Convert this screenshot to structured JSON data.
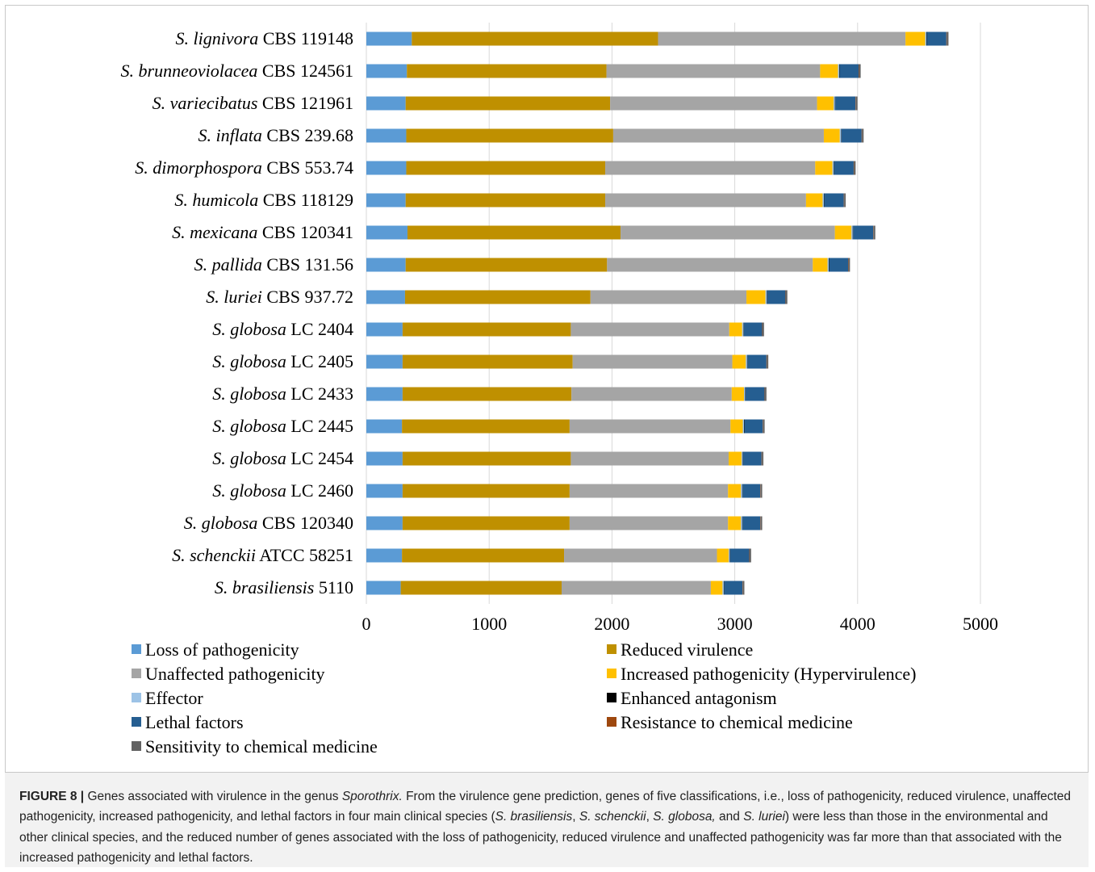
{
  "chart_data": {
    "type": "bar",
    "orientation": "horizontal",
    "stacked": true,
    "categories": [
      {
        "italic": "S. lignivora",
        "rest": " CBS 119148"
      },
      {
        "italic": "S. brunneoviolacea",
        "rest": " CBS 124561"
      },
      {
        "italic": "S. variecibatus",
        "rest": " CBS 121961"
      },
      {
        "italic": "S. inflata",
        "rest": " CBS 239.68"
      },
      {
        "italic": "S. dimorphospora",
        "rest": " CBS 553.74"
      },
      {
        "italic": "S. humicola",
        "rest": " CBS 118129"
      },
      {
        "italic": "S. mexicana",
        "rest": " CBS 120341"
      },
      {
        "italic": "S. pallida",
        "rest": " CBS 131.56"
      },
      {
        "italic": "S. luriei",
        "rest": " CBS 937.72"
      },
      {
        "italic": "S. globosa",
        "rest": " LC 2404"
      },
      {
        "italic": "S. globosa",
        "rest": " LC 2405"
      },
      {
        "italic": "S. globosa",
        "rest": " LC 2433"
      },
      {
        "italic": "S. globosa",
        "rest": " LC 2445"
      },
      {
        "italic": "S. globosa",
        "rest": " LC 2454"
      },
      {
        "italic": "S. globosa",
        "rest": " LC 2460"
      },
      {
        "italic": "S. globosa",
        "rest": " CBS 120340"
      },
      {
        "italic": "S. schenckii",
        "rest": " ATCC 58251"
      },
      {
        "italic": "S. brasiliensis",
        "rest": " 5110"
      }
    ],
    "series": [
      {
        "name": "Loss of pathogenicity",
        "color": "#5b9bd5",
        "values": [
          370,
          330,
          320,
          325,
          325,
          320,
          335,
          320,
          315,
          295,
          295,
          295,
          290,
          295,
          295,
          295,
          290,
          280
        ]
      },
      {
        "name": "Reduced virulence",
        "color": "#bf9000",
        "values": [
          2005,
          1625,
          1665,
          1685,
          1620,
          1625,
          1735,
          1640,
          1510,
          1370,
          1385,
          1375,
          1365,
          1370,
          1360,
          1360,
          1320,
          1310
        ]
      },
      {
        "name": "Unaffected pathogenicity",
        "color": "#a5a5a5",
        "values": [
          2015,
          1740,
          1685,
          1715,
          1710,
          1635,
          1745,
          1675,
          1270,
          1290,
          1300,
          1305,
          1310,
          1285,
          1290,
          1290,
          1245,
          1215
        ]
      },
      {
        "name": "Increased pathogenicity (Hypervirulence)",
        "color": "#ffc000",
        "values": [
          160,
          145,
          135,
          130,
          140,
          135,
          135,
          120,
          155,
          105,
          110,
          100,
          100,
          105,
          105,
          105,
          95,
          95
        ]
      },
      {
        "name": "Effector",
        "color": "#9dc3e6",
        "values": [
          10,
          10,
          10,
          10,
          10,
          10,
          10,
          10,
          10,
          10,
          10,
          10,
          10,
          10,
          10,
          10,
          10,
          10
        ]
      },
      {
        "name": "Enhanced antagonism",
        "color": "#000000",
        "values": [
          3,
          3,
          3,
          3,
          3,
          3,
          3,
          3,
          3,
          3,
          3,
          3,
          3,
          3,
          3,
          3,
          3,
          3
        ]
      },
      {
        "name": "Lethal factors",
        "color": "#255e91",
        "values": [
          160,
          155,
          165,
          165,
          160,
          160,
          165,
          155,
          150,
          150,
          155,
          155,
          150,
          150,
          145,
          145,
          155,
          150
        ]
      },
      {
        "name": "Resistance to chemical medicine",
        "color": "#9e480e",
        "values": [
          3,
          3,
          3,
          3,
          3,
          3,
          3,
          3,
          3,
          3,
          3,
          3,
          3,
          3,
          3,
          3,
          3,
          3
        ]
      },
      {
        "name": "Sensitivity to chemical medicine",
        "color": "#636363",
        "values": [
          14,
          14,
          13,
          13,
          13,
          12,
          13,
          12,
          12,
          12,
          12,
          12,
          12,
          12,
          12,
          12,
          12,
          12
        ]
      }
    ],
    "xlim": [
      0,
      5000
    ],
    "xticks": [
      "0",
      "1000",
      "2000",
      "3000",
      "4000",
      "5000"
    ],
    "grid": "vertical",
    "legend_position": "bottom"
  },
  "caption": {
    "label": "FIGURE 8 |",
    "parts": [
      {
        "t": " Genes associated with virulence in the genus ",
        "i": false
      },
      {
        "t": "Sporothrix.",
        "i": true
      },
      {
        "t": " From the virulence gene prediction, genes of five classifications, i.e., loss of pathogenicity, reduced virulence, unaffected pathogenicity, increased pathogenicity, and lethal factors in four main clinical species (",
        "i": false
      },
      {
        "t": "S. brasiliensis",
        "i": true
      },
      {
        "t": ", ",
        "i": false
      },
      {
        "t": "S. schenckii",
        "i": true
      },
      {
        "t": ", ",
        "i": false
      },
      {
        "t": "S. globosa,",
        "i": true
      },
      {
        "t": " and ",
        "i": false
      },
      {
        "t": "S. luriei",
        "i": true
      },
      {
        "t": ") were less than those in the environmental and other clinical species, and the reduced number of genes associated with the loss of pathogenicity, reduced virulence and unaffected pathogenicity was far more than that associated with the increased pathogenicity and lethal factors.",
        "i": false
      }
    ]
  }
}
